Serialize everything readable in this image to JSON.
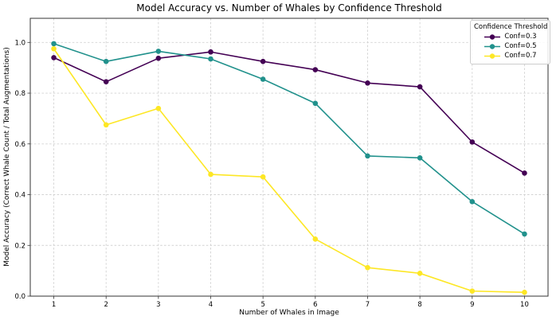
{
  "chart_data": {
    "type": "line",
    "title": "Model Accuracy vs. Number of Whales by Confidence Threshold",
    "xlabel": "Number of Whales in Image",
    "ylabel": "Model Accuracy (Correct Whale Count / Total Augmentations)",
    "legend_title": "Confidence Threshold",
    "legend_position": "upper right",
    "grid": true,
    "grid_style": "dashed",
    "grid_color": "#d3d3d3",
    "background_color": "#ffffff",
    "marker": "circle",
    "x": [
      1,
      2,
      3,
      4,
      5,
      6,
      7,
      8,
      9,
      10
    ],
    "xticks": [
      "1",
      "2",
      "3",
      "4",
      "5",
      "6",
      "7",
      "8",
      "9",
      "10"
    ],
    "yticks": [
      "0.0",
      "0.2",
      "0.4",
      "0.6",
      "0.8",
      "1.0"
    ],
    "ytick_values": [
      0.0,
      0.2,
      0.4,
      0.6,
      0.8,
      1.0
    ],
    "xlim": [
      0.55,
      10.45
    ],
    "ylim": [
      0,
      1.095
    ],
    "series": [
      {
        "name": "Conf=0.3",
        "color": "#440154",
        "values": [
          0.94,
          0.845,
          0.9375,
          0.9625,
          0.925,
          0.8925,
          0.84,
          0.825,
          0.6075,
          0.485
        ]
      },
      {
        "name": "Conf=0.5",
        "color": "#21918c",
        "values": [
          0.995,
          0.925,
          0.965,
          0.935,
          0.855,
          0.76,
          0.5525,
          0.545,
          0.3725,
          0.245
        ]
      },
      {
        "name": "Conf=0.7",
        "color": "#fde725",
        "values": [
          0.975,
          0.675,
          0.74,
          0.48,
          0.47,
          0.225,
          0.1125,
          0.09,
          0.02,
          0.015
        ]
      }
    ]
  }
}
